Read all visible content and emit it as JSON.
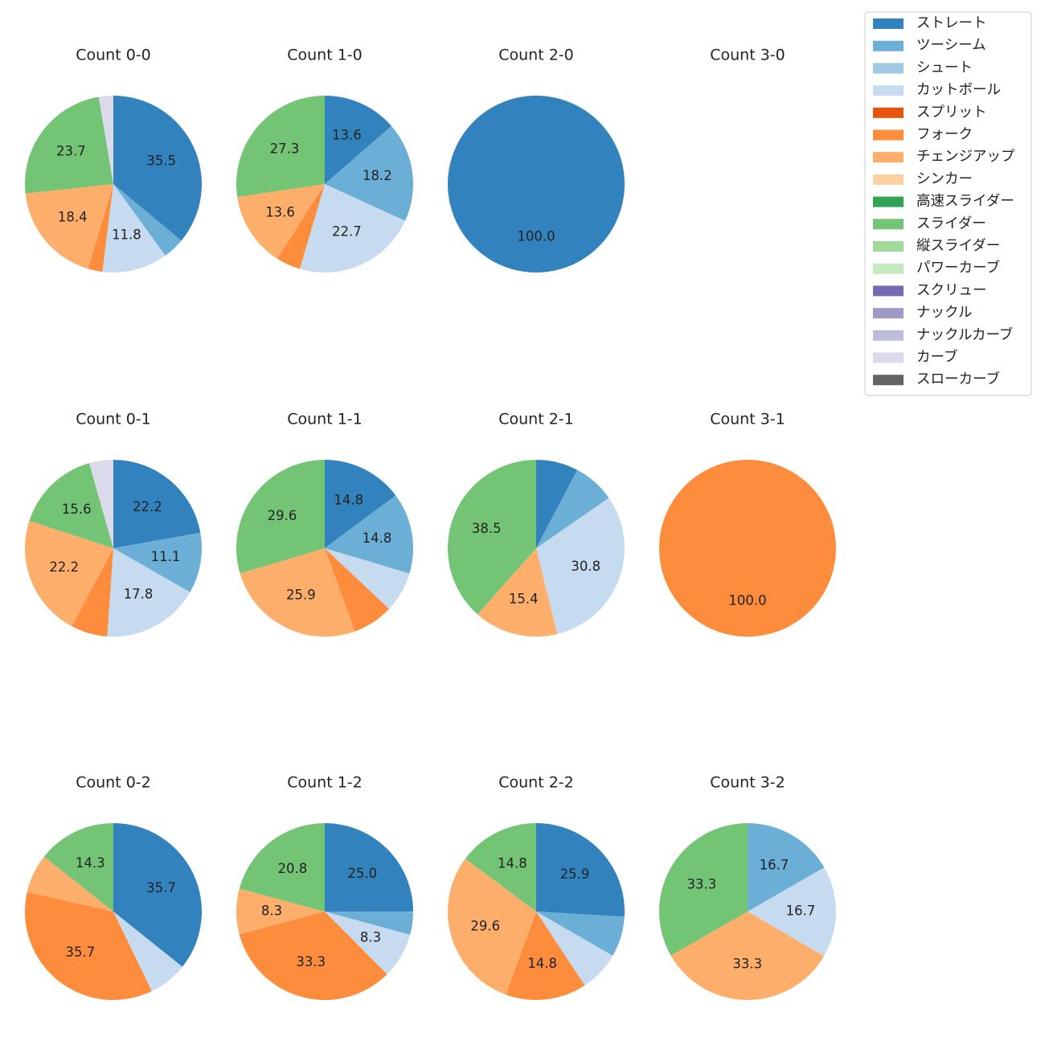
{
  "chart_data": {
    "type": "pie",
    "start_angle": "90 degrees, clockwise",
    "legend": {
      "placement": "top-right",
      "entries": [
        {
          "name": "ストレート",
          "color": "#3182bd"
        },
        {
          "name": "ツーシーム",
          "color": "#6baed6"
        },
        {
          "name": "シュート",
          "color": "#9ecae1"
        },
        {
          "name": "カットボール",
          "color": "#c6dbef"
        },
        {
          "name": "スプリット",
          "color": "#e6550d"
        },
        {
          "name": "フォーク",
          "color": "#fd8d3c"
        },
        {
          "name": "チェンジアップ",
          "color": "#fdae6b"
        },
        {
          "name": "シンカー",
          "color": "#fdd0a2"
        },
        {
          "name": "高速スライダー",
          "color": "#31a354"
        },
        {
          "name": "スライダー",
          "color": "#74c476"
        },
        {
          "name": "縦スライダー",
          "color": "#a1d99b"
        },
        {
          "name": "パワーカーブ",
          "color": "#c7e9c0"
        },
        {
          "name": "スクリュー",
          "color": "#756bb1"
        },
        {
          "name": "ナックル",
          "color": "#9e9ac8"
        },
        {
          "name": "ナックルカーブ",
          "color": "#bcbddc"
        },
        {
          "name": "カーブ",
          "color": "#dadaeb"
        },
        {
          "name": "スローカーブ",
          "color": "#636363"
        }
      ]
    },
    "charts": [
      {
        "title": "Count 0-0",
        "slices": [
          {
            "name": "ストレート",
            "value": 35.5,
            "label": "35.5"
          },
          {
            "name": "ツーシーム",
            "value": 3.9,
            "label": ""
          },
          {
            "name": "カットボール",
            "value": 11.8,
            "label": "11.8"
          },
          {
            "name": "フォーク",
            "value": 2.6,
            "label": ""
          },
          {
            "name": "チェンジアップ",
            "value": 18.4,
            "label": "18.4"
          },
          {
            "name": "スライダー",
            "value": 23.7,
            "label": "23.7"
          },
          {
            "name": "カーブ",
            "value": 2.6,
            "label": ""
          }
        ]
      },
      {
        "title": "Count 1-0",
        "slices": [
          {
            "name": "ストレート",
            "value": 13.6,
            "label": "13.6"
          },
          {
            "name": "ツーシーム",
            "value": 18.2,
            "label": "18.2"
          },
          {
            "name": "カットボール",
            "value": 22.7,
            "label": "22.7"
          },
          {
            "name": "フォーク",
            "value": 4.5,
            "label": ""
          },
          {
            "name": "チェンジアップ",
            "value": 13.6,
            "label": "13.6"
          },
          {
            "name": "スライダー",
            "value": 27.3,
            "label": "27.3"
          }
        ]
      },
      {
        "title": "Count 2-0",
        "slices": [
          {
            "name": "ストレート",
            "value": 100.0,
            "label": "100.0"
          }
        ]
      },
      {
        "title": "Count 3-0",
        "slices": []
      },
      {
        "title": "Count 0-1",
        "slices": [
          {
            "name": "ストレート",
            "value": 22.2,
            "label": "22.2"
          },
          {
            "name": "ツーシーム",
            "value": 11.1,
            "label": "11.1"
          },
          {
            "name": "カットボール",
            "value": 17.8,
            "label": "17.8"
          },
          {
            "name": "フォーク",
            "value": 6.7,
            "label": ""
          },
          {
            "name": "チェンジアップ",
            "value": 22.2,
            "label": "22.2"
          },
          {
            "name": "スライダー",
            "value": 15.6,
            "label": "15.6"
          },
          {
            "name": "カーブ",
            "value": 4.4,
            "label": ""
          }
        ]
      },
      {
        "title": "Count 1-1",
        "slices": [
          {
            "name": "ストレート",
            "value": 14.8,
            "label": "14.8"
          },
          {
            "name": "ツーシーム",
            "value": 14.8,
            "label": "14.8"
          },
          {
            "name": "カットボール",
            "value": 7.4,
            "label": ""
          },
          {
            "name": "フォーク",
            "value": 7.4,
            "label": ""
          },
          {
            "name": "チェンジアップ",
            "value": 25.9,
            "label": "25.9"
          },
          {
            "name": "スライダー",
            "value": 29.6,
            "label": "29.6"
          }
        ]
      },
      {
        "title": "Count 2-1",
        "slices": [
          {
            "name": "ストレート",
            "value": 7.7,
            "label": ""
          },
          {
            "name": "ツーシーム",
            "value": 7.7,
            "label": ""
          },
          {
            "name": "カットボール",
            "value": 30.8,
            "label": "30.8"
          },
          {
            "name": "チェンジアップ",
            "value": 15.4,
            "label": "15.4"
          },
          {
            "name": "スライダー",
            "value": 38.5,
            "label": "38.5"
          }
        ]
      },
      {
        "title": "Count 3-1",
        "slices": [
          {
            "name": "フォーク",
            "value": 100.0,
            "label": "100.0"
          }
        ]
      },
      {
        "title": "Count 0-2",
        "slices": [
          {
            "name": "ストレート",
            "value": 35.7,
            "label": "35.7"
          },
          {
            "name": "カットボール",
            "value": 7.1,
            "label": ""
          },
          {
            "name": "フォーク",
            "value": 35.7,
            "label": "35.7"
          },
          {
            "name": "チェンジアップ",
            "value": 7.1,
            "label": ""
          },
          {
            "name": "スライダー",
            "value": 14.3,
            "label": "14.3"
          }
        ]
      },
      {
        "title": "Count 1-2",
        "slices": [
          {
            "name": "ストレート",
            "value": 25.0,
            "label": "25.0"
          },
          {
            "name": "ツーシーム",
            "value": 4.2,
            "label": ""
          },
          {
            "name": "カットボール",
            "value": 8.3,
            "label": "8.3"
          },
          {
            "name": "フォーク",
            "value": 33.3,
            "label": "33.3"
          },
          {
            "name": "チェンジアップ",
            "value": 8.3,
            "label": "8.3"
          },
          {
            "name": "スライダー",
            "value": 20.8,
            "label": "20.8"
          }
        ]
      },
      {
        "title": "Count 2-2",
        "slices": [
          {
            "name": "ストレート",
            "value": 25.9,
            "label": "25.9"
          },
          {
            "name": "ツーシーム",
            "value": 7.4,
            "label": ""
          },
          {
            "name": "カットボール",
            "value": 7.4,
            "label": ""
          },
          {
            "name": "フォーク",
            "value": 14.8,
            "label": "14.8"
          },
          {
            "name": "チェンジアップ",
            "value": 29.6,
            "label": "29.6"
          },
          {
            "name": "スライダー",
            "value": 14.8,
            "label": "14.8"
          }
        ]
      },
      {
        "title": "Count 3-2",
        "slices": [
          {
            "name": "ツーシーム",
            "value": 16.7,
            "label": "16.7"
          },
          {
            "name": "カットボール",
            "value": 16.7,
            "label": "16.7"
          },
          {
            "name": "チェンジアップ",
            "value": 33.3,
            "label": "33.3"
          },
          {
            "name": "スライダー",
            "value": 33.3,
            "label": "33.3"
          }
        ]
      }
    ]
  }
}
